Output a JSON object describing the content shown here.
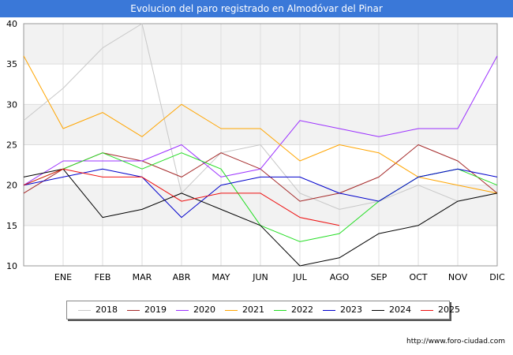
{
  "page": {
    "title": "Evolucion del paro registrado en Almodóvar del Pinar",
    "credit": "http://www.foro-ciudad.com"
  },
  "colors": {
    "title_bar": "#3a78d8",
    "band": "#f2f2f2",
    "grid": "#dddddd"
  },
  "chart_data": {
    "type": "line",
    "title": "Evolucion del paro registrado en Almodóvar del Pinar",
    "xlabel": "",
    "ylabel": "",
    "categories": [
      "",
      "ENE",
      "FEB",
      "MAR",
      "ABR",
      "MAY",
      "JUN",
      "JUL",
      "AGO",
      "SEP",
      "OCT",
      "NOV",
      "DIC"
    ],
    "ylim": [
      10,
      40
    ],
    "yticks": [
      10,
      15,
      20,
      25,
      30,
      35,
      40
    ],
    "grid": true,
    "legend_position": "bottom",
    "series": [
      {
        "name": "2018",
        "color": "#c8c8c8",
        "values": [
          28,
          32,
          37,
          40,
          19,
          24,
          25,
          19,
          17,
          18,
          20,
          18,
          19
        ]
      },
      {
        "name": "2019",
        "color": "#a52a2a",
        "values": [
          19,
          22,
          24,
          23,
          21,
          24,
          22,
          18,
          19,
          21,
          25,
          23,
          19
        ]
      },
      {
        "name": "2020",
        "color": "#9b30ff",
        "values": [
          20,
          23,
          23,
          23,
          25,
          21,
          22,
          28,
          27,
          26,
          27,
          27,
          36
        ]
      },
      {
        "name": "2021",
        "color": "#ffa500",
        "values": [
          36,
          27,
          29,
          26,
          30,
          27,
          27,
          23,
          25,
          24,
          21,
          20,
          19
        ]
      },
      {
        "name": "2022",
        "color": "#22dd22",
        "values": [
          20,
          22,
          24,
          22,
          24,
          22,
          15,
          13,
          14,
          18,
          21,
          22,
          20
        ]
      },
      {
        "name": "2023",
        "color": "#0000cc",
        "values": [
          20,
          21,
          22,
          21,
          16,
          20,
          21,
          21,
          19,
          18,
          21,
          22,
          21
        ]
      },
      {
        "name": "2024",
        "color": "#000000",
        "values": [
          21,
          22,
          16,
          17,
          19,
          17,
          15,
          10,
          11,
          14,
          15,
          18,
          19
        ]
      },
      {
        "name": "2025",
        "color": "#ee1111",
        "values": [
          20,
          22,
          21,
          21,
          18,
          19,
          19,
          16,
          15,
          null,
          null,
          null,
          null
        ]
      }
    ]
  }
}
